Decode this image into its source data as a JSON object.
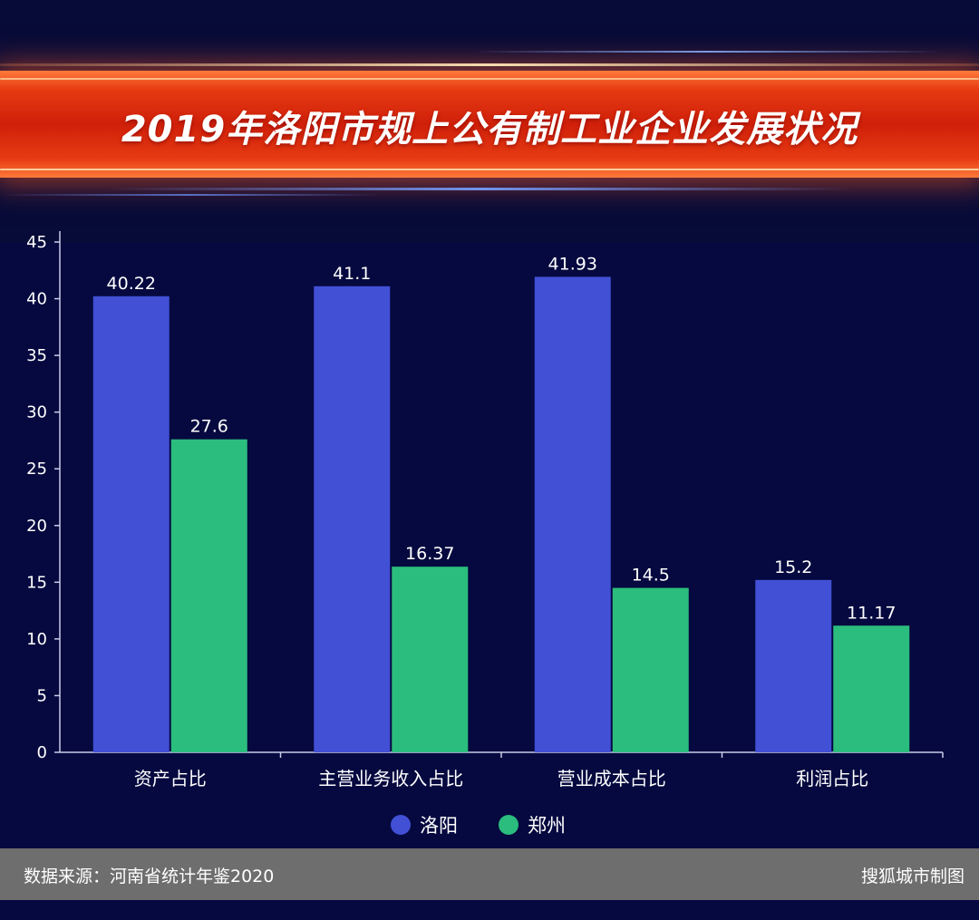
{
  "title": "2019年洛阳市规上公有制工业企业发展状况",
  "footer": {
    "source": "数据来源：河南省统计年鉴2020",
    "credit": "搜狐城市制图"
  },
  "chart_data": {
    "type": "bar",
    "categories": [
      "资产占比",
      "主营业务收入占比",
      "营业成本占比",
      "利润占比"
    ],
    "series": [
      {
        "name": "洛阳",
        "values": [
          40.22,
          41.1,
          41.93,
          15.2
        ],
        "labels": [
          "40.22",
          "41.1",
          "41.93",
          "15.2"
        ],
        "color": "#4250d6"
      },
      {
        "name": "郑州",
        "values": [
          27.6,
          16.37,
          14.5,
          11.17
        ],
        "labels": [
          "27.6",
          "16.37",
          "14.5",
          "11.17"
        ],
        "color": "#2bbd7e"
      }
    ],
    "ylim": [
      0,
      45
    ],
    "yticks": [
      0,
      5,
      10,
      15,
      20,
      25,
      30,
      35,
      40,
      45
    ],
    "grid": false,
    "legend": "bottom-center",
    "axis_color": "#c9cce8",
    "text_color": "#ffffff"
  }
}
